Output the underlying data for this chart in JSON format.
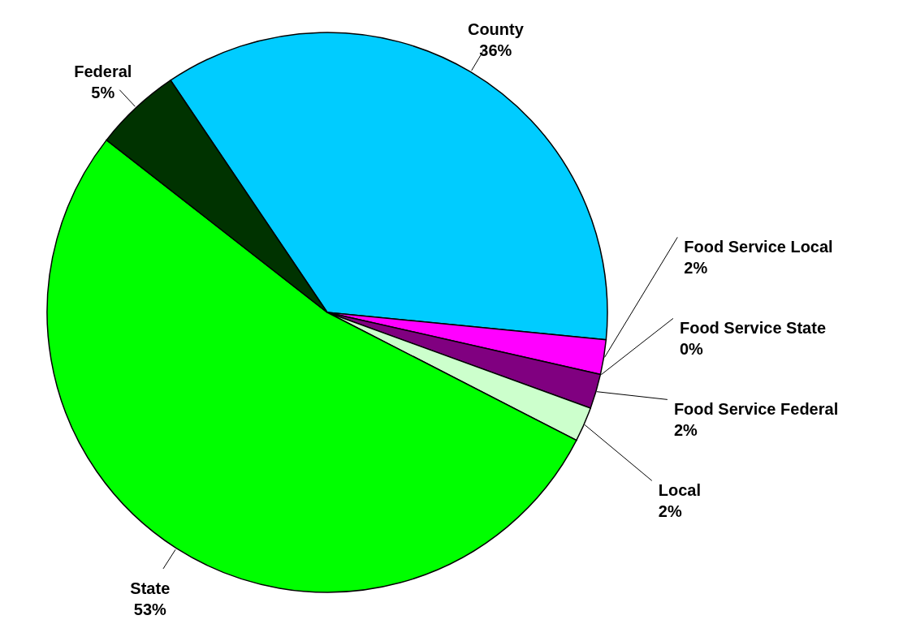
{
  "chart_data": {
    "type": "pie",
    "categories": [
      "County",
      "Food Service Local",
      "Food Service State",
      "Food Service Federal",
      "Local",
      "State",
      "Federal"
    ],
    "values": [
      36,
      2,
      0,
      2,
      2,
      53,
      5
    ],
    "value_labels": [
      "36%",
      "2%",
      "0%",
      "2%",
      "2%",
      "53%",
      "5%"
    ],
    "colors": [
      "#00ccff",
      "#ff00ff",
      "#9966cc",
      "#800080",
      "#ccffcc",
      "#00ff00",
      "#003300"
    ]
  }
}
